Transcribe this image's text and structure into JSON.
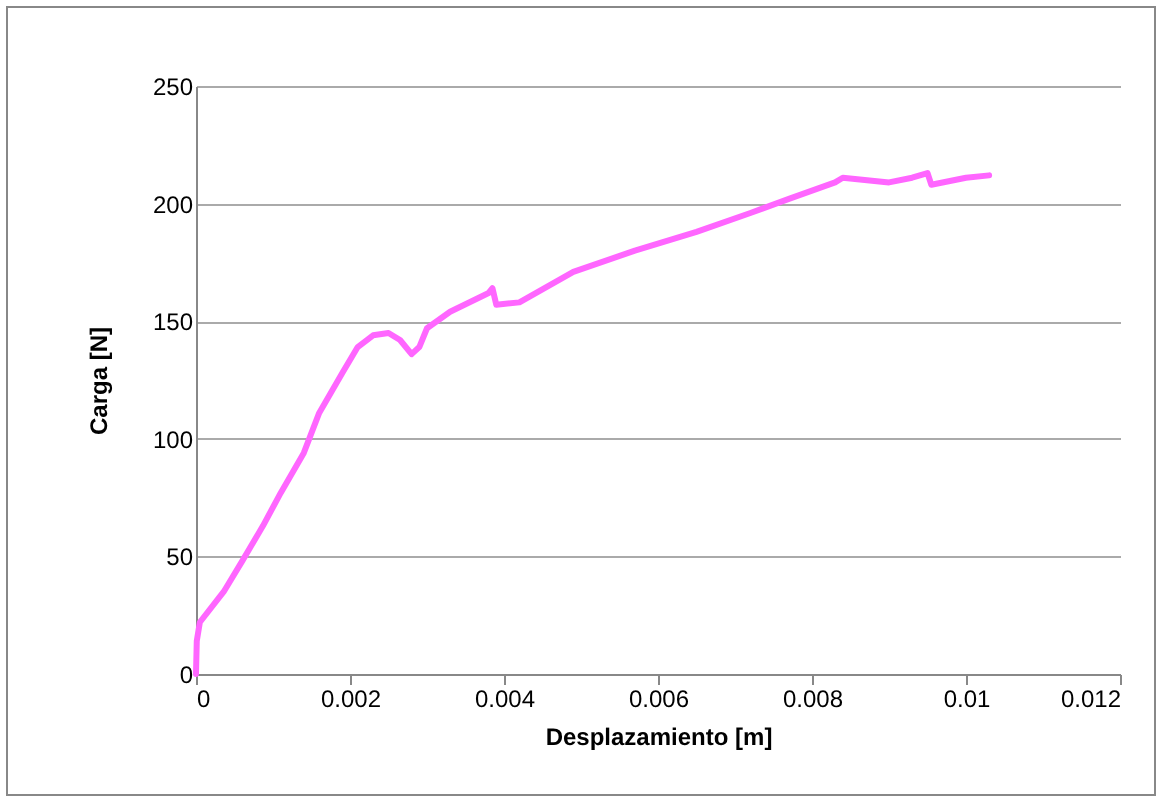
{
  "chart_data": {
    "type": "line",
    "xlabel": "Desplazamiento [m]",
    "ylabel": "Carga [N]",
    "x": [
      0,
      1e-05,
      5e-05,
      0.00036,
      0.0006,
      0.00087,
      0.0011,
      0.0014,
      0.0016,
      0.0019,
      0.0021,
      0.0023,
      0.0025,
      0.00265,
      0.0028,
      0.0029,
      0.003,
      0.0033,
      0.0038,
      0.00385,
      0.0039,
      0.0042,
      0.0049,
      0.0057,
      0.0065,
      0.0072,
      0.0077,
      0.0083,
      0.0084,
      0.009,
      0.0093,
      0.0095,
      0.00955,
      0.01,
      0.0103
    ],
    "series": [
      {
        "color": "#ff66ff",
        "values": [
          0,
          14,
          22,
          35,
          48,
          63,
          77,
          94,
          111,
          128,
          139,
          144,
          145,
          142,
          136,
          139,
          147,
          154,
          162,
          164,
          157,
          158,
          171,
          180,
          188,
          196,
          202,
          209,
          211,
          209,
          211,
          213,
          208,
          211,
          212
        ]
      }
    ],
    "xlim": [
      0,
      0.012
    ],
    "xticks": [
      0,
      0.002,
      0.004,
      0.006,
      0.008,
      0.01,
      0.012
    ],
    "ylim": [
      0,
      250
    ],
    "yticks": [
      0,
      50,
      100,
      150,
      200,
      250
    ],
    "grid": "y",
    "marker": "none",
    "line_style": "solid"
  }
}
